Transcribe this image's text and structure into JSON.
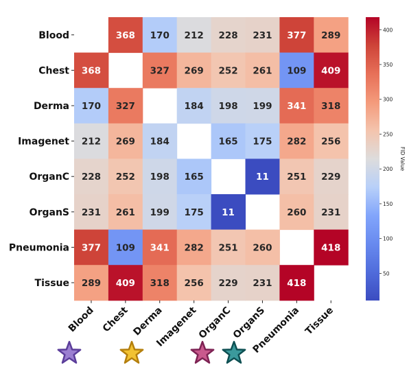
{
  "chart_data": {
    "type": "heatmap",
    "rows": [
      "Blood",
      "Chest",
      "Derma",
      "Imagenet",
      "OrganC",
      "OrganS",
      "Pneumonia",
      "Tissue"
    ],
    "columns": [
      "Blood",
      "Chest",
      "Derma",
      "Imagenet",
      "OrganC",
      "OrganS",
      "Pneumonia",
      "Tissue"
    ],
    "values": [
      [
        null,
        368,
        170,
        212,
        228,
        231,
        377,
        289
      ],
      [
        368,
        null,
        327,
        269,
        252,
        261,
        109,
        409
      ],
      [
        170,
        327,
        null,
        184,
        198,
        199,
        341,
        318
      ],
      [
        212,
        269,
        184,
        null,
        165,
        175,
        282,
        256
      ],
      [
        228,
        252,
        198,
        165,
        null,
        11,
        251,
        229
      ],
      [
        231,
        261,
        199,
        175,
        11,
        null,
        260,
        231
      ],
      [
        377,
        109,
        341,
        282,
        251,
        260,
        null,
        418
      ],
      [
        289,
        409,
        318,
        256,
        229,
        231,
        418,
        null
      ]
    ],
    "colormap": "coolwarm",
    "colorbar": {
      "label": "FID Value",
      "range": [
        11,
        418
      ],
      "ticks": [
        50,
        100,
        150,
        200,
        250,
        300,
        350,
        400
      ]
    },
    "annotations": "cell values shown",
    "diagonal": "empty"
  },
  "markers": [
    {
      "shape": "star",
      "fill": "#9b7fd1",
      "stroke": "#5b3d9a"
    },
    {
      "shape": "star",
      "fill": "#f2c232",
      "stroke": "#b47f0d"
    },
    {
      "shape": "star",
      "fill": "#c9598d",
      "stroke": "#7d2253"
    },
    {
      "shape": "star",
      "fill": "#3b9a9c",
      "stroke": "#0d4f52"
    }
  ]
}
